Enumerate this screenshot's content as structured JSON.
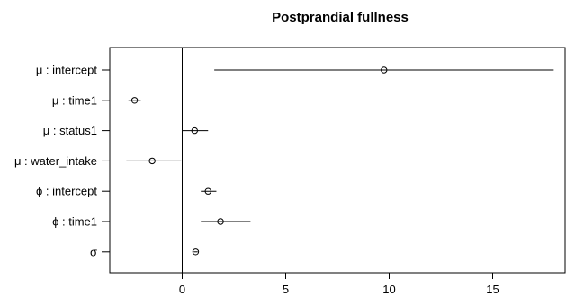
{
  "chart_data": {
    "type": "forest",
    "title": "Postprandial fullness",
    "xlabel": "",
    "ylabel": "",
    "xlim": [
      -3.5,
      18.5
    ],
    "xticks": [
      0,
      5,
      10,
      15
    ],
    "reference_line_x": 0,
    "grid": false,
    "legend": "none",
    "rows": [
      {
        "label": "μ : intercept",
        "estimate": 9.75,
        "lower": 1.55,
        "upper": 17.95
      },
      {
        "label": "μ : time1",
        "estimate": -2.3,
        "lower": -2.6,
        "upper": -2.0
      },
      {
        "label": "μ : status1",
        "estimate": 0.6,
        "lower": 0.0,
        "upper": 1.25
      },
      {
        "label": "μ : water_intake",
        "estimate": -1.45,
        "lower": -2.7,
        "upper": -0.05
      },
      {
        "label": "ϕ : intercept",
        "estimate": 1.25,
        "lower": 0.9,
        "upper": 1.65
      },
      {
        "label": "ϕ : time1",
        "estimate": 1.85,
        "lower": 0.9,
        "upper": 3.3
      },
      {
        "label": "σ",
        "estimate": 0.65,
        "lower": 0.55,
        "upper": 0.75
      }
    ]
  }
}
